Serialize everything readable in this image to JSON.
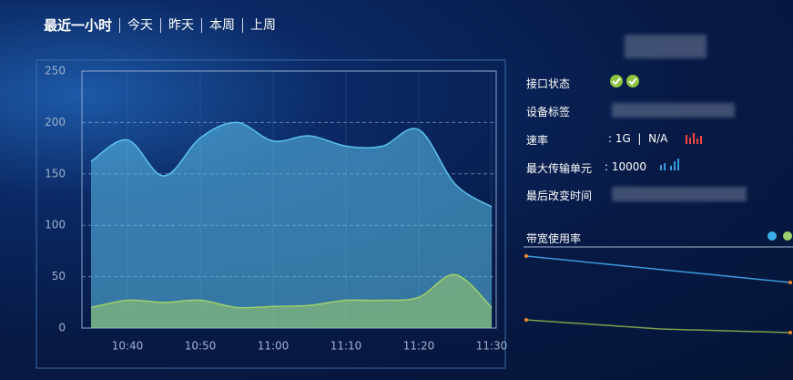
{
  "tabs": [
    "最近一小时",
    "今天",
    "昨天",
    "本周",
    "上周"
  ],
  "info": {
    "status_label": "接口状态",
    "tag_label": "设备标签",
    "rate_label": "速率",
    "rate_value": ": 1G  |  N/A",
    "mtu_label": "最大传输单元",
    "mtu_value": ": 10000",
    "changed_label": "最后改变时间"
  },
  "bandwidth_title": "带宽使用率",
  "chart_data": {
    "type": "area",
    "categories": [
      null,
      "10:40",
      null,
      "10:50",
      null,
      "11:00",
      null,
      "11:10",
      null,
      "11:20",
      null,
      "11:30"
    ],
    "series": [
      {
        "color": "#5cc3ee",
        "values": [
          162,
          183,
          148,
          185,
          200,
          182,
          187,
          177,
          177,
          193,
          140,
          118
        ]
      },
      {
        "color": "#9fd06c",
        "values": [
          20,
          27,
          25,
          27,
          20,
          21,
          22,
          27,
          27,
          30,
          52,
          20
        ]
      }
    ],
    "ylim": [
      0,
      250
    ],
    "yticks": [
      0,
      50,
      100,
      150,
      200,
      250
    ],
    "grid": true
  }
}
